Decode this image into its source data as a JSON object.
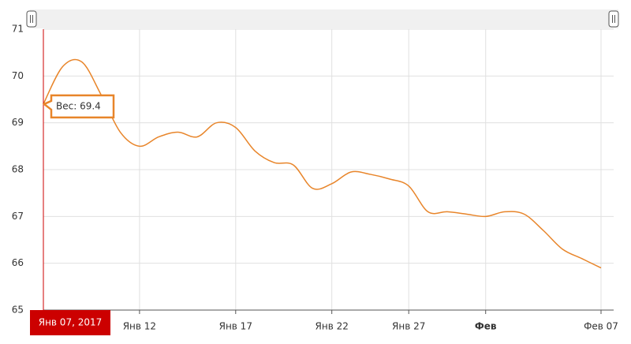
{
  "chart_data": {
    "type": "line",
    "categories": [
      null,
      null,
      null,
      null,
      null,
      "Янв 12",
      null,
      null,
      null,
      null,
      "Янв 17",
      null,
      null,
      null,
      null,
      "Янв 22",
      null,
      null,
      null,
      "Янв 27",
      null,
      null,
      null,
      "Фев",
      null,
      null,
      null,
      null,
      null,
      "Фев 07"
    ],
    "series": [
      {
        "name": "Вес",
        "color": "#e8852a",
        "values": [
          69.4,
          70.2,
          70.3,
          69.6,
          68.8,
          68.5,
          68.7,
          68.8,
          68.7,
          69.0,
          68.9,
          68.4,
          68.15,
          68.1,
          67.6,
          67.7,
          67.95,
          67.9,
          67.8,
          67.65,
          67.1,
          67.1,
          67.05,
          67.0,
          67.1,
          67.05,
          66.7,
          66.3,
          66.1,
          65.9
        ]
      }
    ],
    "ylim": [
      65,
      71
    ],
    "yticks": [
      65,
      66,
      67,
      68,
      69,
      70,
      71
    ],
    "grid": true,
    "cursor": {
      "label": "Янв 07, 2017",
      "value_label": "Вес: 69.4",
      "color": "#cc0000"
    }
  }
}
